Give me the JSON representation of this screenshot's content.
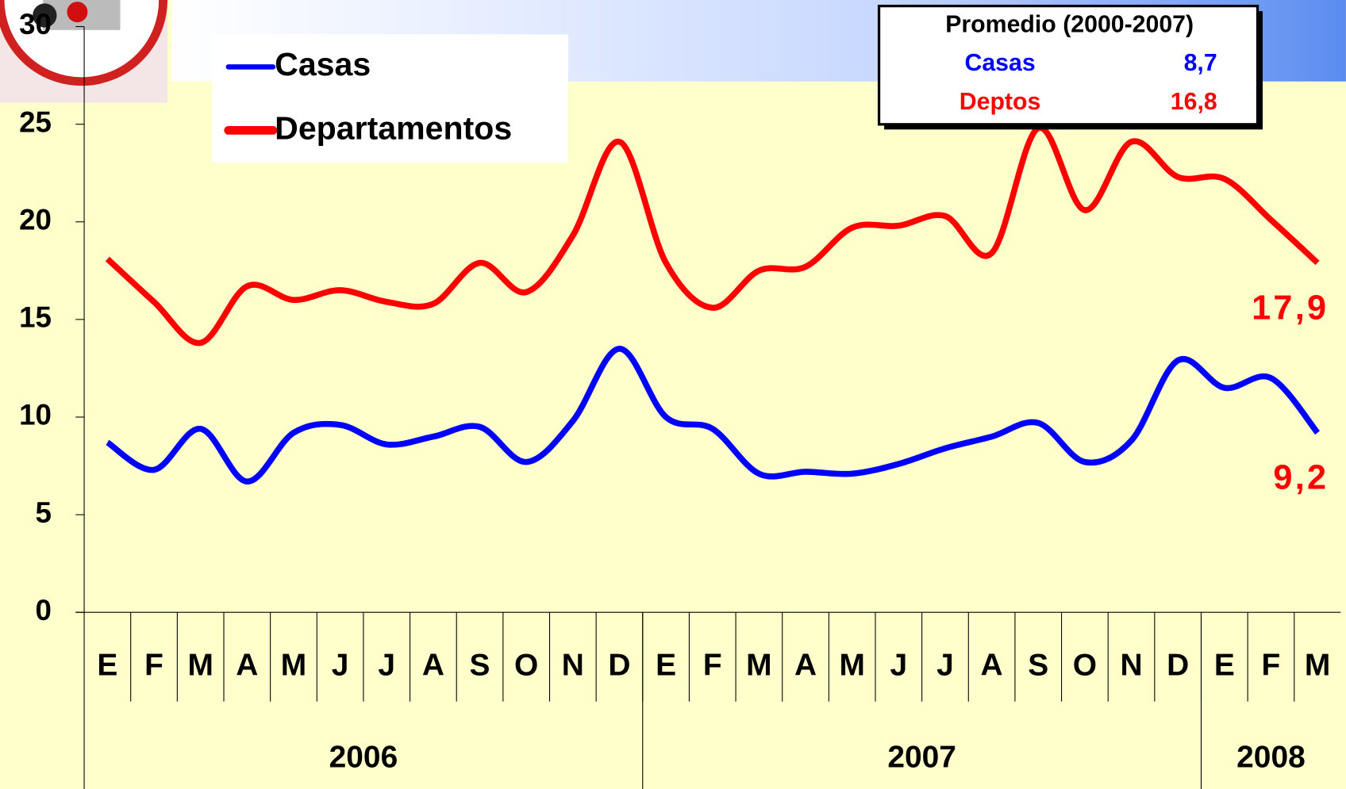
{
  "chart_data": {
    "type": "line",
    "categories": [
      "E",
      "F",
      "M",
      "A",
      "M",
      "J",
      "J",
      "A",
      "S",
      "O",
      "N",
      "D",
      "E",
      "F",
      "M",
      "A",
      "M",
      "J",
      "J",
      "A",
      "S",
      "O",
      "N",
      "D",
      "E",
      "F",
      "M"
    ],
    "year_groups": [
      {
        "label": "2006",
        "span": 12
      },
      {
        "label": "2007",
        "span": 12
      },
      {
        "label": "2008",
        "span": 3
      }
    ],
    "series": [
      {
        "name": "Casas",
        "color": "#0000ff",
        "end_label": "9,2",
        "values": [
          8.7,
          7.3,
          9.4,
          6.7,
          9.2,
          9.6,
          8.6,
          9.0,
          9.5,
          7.7,
          9.8,
          13.5,
          10.0,
          9.4,
          7.1,
          7.2,
          7.1,
          7.6,
          8.4,
          9.0,
          9.7,
          7.7,
          8.8,
          12.9,
          11.5,
          12.0,
          9.2
        ]
      },
      {
        "name": "Departamentos",
        "color": "#ff0000",
        "end_label": "17,9",
        "values": [
          18.1,
          15.9,
          13.8,
          16.7,
          16.0,
          16.5,
          15.9,
          15.8,
          17.9,
          16.4,
          19.3,
          24.1,
          17.9,
          15.6,
          17.5,
          17.7,
          19.7,
          19.8,
          20.3,
          18.4,
          24.8,
          20.6,
          24.1,
          22.3,
          22.2,
          20.1,
          17.9
        ]
      }
    ],
    "ylim": [
      0,
      30
    ],
    "yticks": [
      0,
      5,
      10,
      15,
      20,
      25,
      30
    ],
    "inset": {
      "title": "Promedio (2000-2007)",
      "rows": [
        {
          "name": "Casas",
          "value": "8,7",
          "color": "#0000ff"
        },
        {
          "name": "Deptos",
          "value": "16,8",
          "color": "#ff0000"
        }
      ]
    }
  }
}
